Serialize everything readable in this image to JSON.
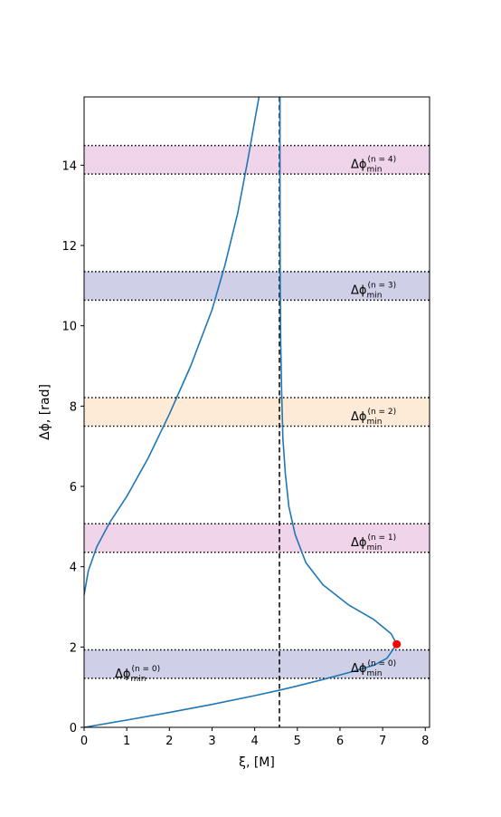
{
  "chart_data": {
    "type": "line",
    "title": "",
    "xlabel": "ξ, [M]",
    "ylabel": "Δϕ, [rad]",
    "xlim": [
      0,
      8.1
    ],
    "ylim": [
      0,
      15.7
    ],
    "xticks": [
      0,
      1,
      2,
      3,
      4,
      5,
      6,
      7,
      8
    ],
    "yticks": [
      0,
      2,
      4,
      6,
      8,
      10,
      12,
      14
    ],
    "grid": false,
    "legend": "none",
    "vertical_line": {
      "x": 4.58,
      "style": "dashed",
      "color": "#000000"
    },
    "marker": {
      "x": 7.33,
      "y": 2.07,
      "color": "#ff0000"
    },
    "bands": [
      {
        "ymin": 1.22,
        "ymax": 1.93,
        "color": "#cfcfe8",
        "label_main": "Δϕ",
        "label_sub": "min",
        "label_sup": "(n = 0)"
      },
      {
        "ymin": 4.36,
        "ymax": 5.07,
        "color": "#f0d4ea",
        "label_main": "Δϕ",
        "label_sub": "min",
        "label_sup": "(n = 1)"
      },
      {
        "ymin": 7.5,
        "ymax": 8.21,
        "color": "#fdebd8",
        "label_main": "Δϕ",
        "label_sub": "min",
        "label_sup": "(n = 2)"
      },
      {
        "ymin": 10.64,
        "ymax": 11.35,
        "color": "#cfcfe8",
        "label_main": "Δϕ",
        "label_sub": "min",
        "label_sup": "(n = 3)"
      },
      {
        "ymin": 13.78,
        "ymax": 14.49,
        "color": "#f0d4ea",
        "label_main": "Δϕ",
        "label_sub": "min",
        "label_sup": "(n = 4)"
      }
    ],
    "extra_label": {
      "main": "Δϕ",
      "sub": "min",
      "sup": "(n = 0)"
    },
    "series": [
      {
        "color": "#1f77b4",
        "x": [
          0,
          1.0,
          2.0,
          3.0,
          4.0,
          4.6,
          5.0,
          5.6,
          6.3,
          6.8,
          7.1,
          7.33,
          7.2,
          6.8,
          6.2,
          5.6,
          5.2,
          4.95,
          4.8,
          4.72,
          4.66,
          4.63,
          4.61,
          4.6,
          4.595,
          4.593,
          4.592
        ],
        "y": [
          0,
          0.18,
          0.37,
          0.57,
          0.79,
          0.93,
          1.03,
          1.19,
          1.39,
          1.55,
          1.72,
          2.07,
          2.33,
          2.68,
          3.05,
          3.55,
          4.1,
          4.8,
          5.5,
          6.3,
          7.2,
          8.4,
          9.6,
          11.0,
          12.5,
          14.2,
          15.7
        ]
      },
      {
        "color": "#1f77b4",
        "x": [
          0,
          0.1,
          0.3,
          0.6,
          1.0,
          1.5,
          2.0,
          2.5,
          3.0,
          3.3,
          3.6,
          3.85,
          4.0,
          4.1
        ],
        "y": [
          3.3,
          3.9,
          4.5,
          5.1,
          5.75,
          6.7,
          7.8,
          9.0,
          10.4,
          11.5,
          12.8,
          14.2,
          15.1,
          15.7
        ]
      }
    ]
  }
}
